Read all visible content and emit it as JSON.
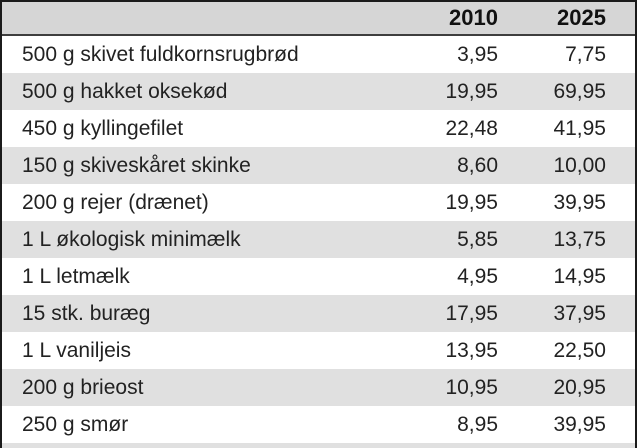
{
  "table": {
    "header": {
      "item_label": "",
      "col_2010": "2010",
      "col_2025": "2025"
    },
    "rows": [
      {
        "item": "500 g skivet fuldkornsrugbrød",
        "price_2010": "3,95",
        "price_2025": "7,75"
      },
      {
        "item": "500 g hakket oksekød",
        "price_2010": "19,95",
        "price_2025": "69,95"
      },
      {
        "item": "450 g kyllingefilet",
        "price_2010": "22,48",
        "price_2025": "41,95"
      },
      {
        "item": "150 g skiveskåret skinke",
        "price_2010": "8,60",
        "price_2025": "10,00"
      },
      {
        "item": "200 g rejer (drænet)",
        "price_2010": "19,95",
        "price_2025": "39,95"
      },
      {
        "item": "1 L økologisk minimælk",
        "price_2010": "5,85",
        "price_2025": "13,75"
      },
      {
        "item": "1 L letmælk",
        "price_2010": "4,95",
        "price_2025": "14,95"
      },
      {
        "item": "15 stk. buræg",
        "price_2010": "17,95",
        "price_2025": "37,95"
      },
      {
        "item": "1 L vaniljeis",
        "price_2010": "13,95",
        "price_2025": "22,50"
      },
      {
        "item": "200 g brieost",
        "price_2010": "10,95",
        "price_2025": "20,95"
      },
      {
        "item": "250 g smør",
        "price_2010": "8,95",
        "price_2025": "39,95"
      }
    ]
  },
  "chart_data": {
    "type": "table",
    "title": "",
    "columns": [
      "",
      "2010",
      "2025"
    ],
    "rows": [
      [
        "500 g skivet fuldkornsrugbrød",
        3.95,
        7.75
      ],
      [
        "500 g hakket oksekød",
        19.95,
        69.95
      ],
      [
        "450 g kyllingefilet",
        22.48,
        41.95
      ],
      [
        "150 g skiveskåret skinke",
        8.6,
        10.0
      ],
      [
        "200 g rejer (drænet)",
        19.95,
        39.95
      ],
      [
        "1 L økologisk minimælk",
        5.85,
        13.75
      ],
      [
        "1 L letmælk",
        4.95,
        14.95
      ],
      [
        "15 stk. buræg",
        17.95,
        37.95
      ],
      [
        "1 L vaniljeis",
        13.95,
        22.5
      ],
      [
        "200 g brieost",
        10.95,
        20.95
      ],
      [
        "250 g smør",
        8.95,
        39.95
      ]
    ],
    "number_format": "da-DK (comma decimal separator)",
    "layout_hints": {
      "zebra_striping": true,
      "striped_row_indices": [
        1,
        3,
        5,
        7,
        9
      ],
      "value_alignment": "right",
      "cropped_next_row_visible_at_bottom": true
    }
  },
  "colors": {
    "header_background": "#d6d6d6",
    "stripe_background": "#e0e0e0",
    "outer_border": "#1b1b1b",
    "header_divider": "#3e3e3e",
    "text": "#222222"
  }
}
